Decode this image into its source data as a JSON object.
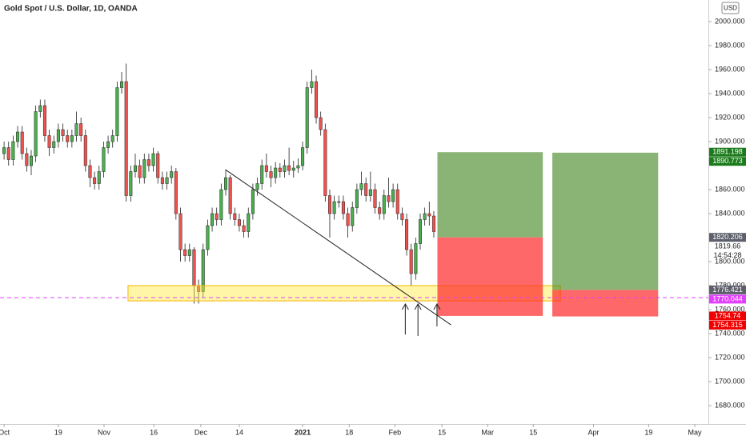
{
  "chart_data": {
    "type": "candlestick",
    "title": "Gold Spot / U.S. Dollar, 1D, OANDA",
    "currency": "USD",
    "open": [
      1890,
      1895,
      1885,
      1900,
      1908,
      1890,
      1880,
      1888,
      1925,
      1930,
      1905,
      1895,
      1900,
      1910,
      1905,
      1900,
      1905,
      1915,
      1905,
      1880,
      1870,
      1865,
      1875,
      1895,
      1900,
      1905,
      1945,
      1950,
      1855,
      1875,
      1880,
      1870,
      1885,
      1880,
      1890,
      1870,
      1865,
      1870,
      1875,
      1840,
      1810,
      1805,
      1810,
      1780,
      1775,
      1810,
      1830,
      1840,
      1835,
      1860,
      1870,
      1840,
      1835,
      1830,
      1825,
      1840,
      1860,
      1865,
      1880,
      1875,
      1870,
      1878,
      1875,
      1880,
      1876,
      1878,
      1880,
      1895,
      1945,
      1950,
      1920,
      1910,
      1855,
      1840,
      1850,
      1850,
      1840,
      1830,
      1845,
      1860,
      1865,
      1855,
      1860,
      1845,
      1840,
      1855,
      1850,
      1860,
      1840,
      1835,
      1810,
      1790,
      1815,
      1835,
      1840,
      1838
    ],
    "high": [
      1900,
      1900,
      1905,
      1913,
      1913,
      1895,
      1893,
      1930,
      1935,
      1935,
      1910,
      1905,
      1915,
      1915,
      1910,
      1910,
      1925,
      1920,
      1910,
      1885,
      1875,
      1880,
      1900,
      1905,
      1910,
      1950,
      1958,
      1965,
      1880,
      1890,
      1885,
      1890,
      1890,
      1895,
      1892,
      1875,
      1875,
      1880,
      1878,
      1845,
      1815,
      1815,
      1812,
      1785,
      1815,
      1835,
      1845,
      1845,
      1865,
      1876,
      1872,
      1845,
      1840,
      1835,
      1845,
      1865,
      1870,
      1885,
      1890,
      1880,
      1883,
      1882,
      1885,
      1895,
      1884,
      1886,
      1900,
      1950,
      1960,
      1955,
      1925,
      1915,
      1860,
      1855,
      1855,
      1855,
      1845,
      1850,
      1865,
      1875,
      1870,
      1875,
      1865,
      1850,
      1860,
      1870,
      1865,
      1865,
      1845,
      1840,
      1815,
      1820,
      1840,
      1845,
      1850,
      1842
    ],
    "low": [
      1885,
      1880,
      1880,
      1895,
      1885,
      1875,
      1872,
      1883,
      1920,
      1900,
      1888,
      1890,
      1895,
      1900,
      1895,
      1895,
      1900,
      1900,
      1875,
      1862,
      1860,
      1860,
      1870,
      1890,
      1895,
      1900,
      1940,
      1850,
      1850,
      1870,
      1865,
      1865,
      1875,
      1875,
      1865,
      1860,
      1860,
      1865,
      1835,
      1800,
      1800,
      1800,
      1765,
      1765,
      1770,
      1805,
      1825,
      1830,
      1830,
      1855,
      1835,
      1830,
      1825,
      1820,
      1820,
      1835,
      1855,
      1860,
      1870,
      1862,
      1865,
      1870,
      1870,
      1872,
      1870,
      1874,
      1876,
      1890,
      1940,
      1915,
      1905,
      1850,
      1820,
      1835,
      1845,
      1835,
      1820,
      1825,
      1840,
      1855,
      1850,
      1850,
      1840,
      1835,
      1835,
      1845,
      1845,
      1835,
      1830,
      1805,
      1780,
      1785,
      1810,
      1830,
      1830,
      1820
    ],
    "close": [
      1895,
      1885,
      1900,
      1908,
      1890,
      1880,
      1888,
      1925,
      1930,
      1905,
      1895,
      1900,
      1910,
      1905,
      1900,
      1905,
      1915,
      1905,
      1880,
      1870,
      1865,
      1875,
      1895,
      1900,
      1905,
      1945,
      1950,
      1855,
      1875,
      1880,
      1870,
      1885,
      1880,
      1890,
      1870,
      1865,
      1870,
      1875,
      1840,
      1810,
      1805,
      1810,
      1780,
      1775,
      1810,
      1830,
      1840,
      1835,
      1860,
      1870,
      1840,
      1835,
      1830,
      1825,
      1840,
      1860,
      1865,
      1880,
      1875,
      1870,
      1878,
      1875,
      1880,
      1876,
      1878,
      1880,
      1895,
      1945,
      1950,
      1920,
      1910,
      1855,
      1840,
      1850,
      1850,
      1840,
      1830,
      1845,
      1860,
      1865,
      1855,
      1860,
      1845,
      1840,
      1855,
      1850,
      1860,
      1840,
      1835,
      1810,
      1790,
      1815,
      1835,
      1840,
      1838,
      1825
    ],
    "up_color": "#4caf50",
    "down_color": "#ef5350",
    "xlim": [
      -0.9,
      155.7
    ],
    "xticks": [
      {
        "value": 0,
        "label": "Oct"
      },
      {
        "value": 12,
        "label": "19"
      },
      {
        "value": 22.1,
        "label": "Nov"
      },
      {
        "value": 33.1,
        "label": "16"
      },
      {
        "value": 43.5,
        "label": "Dec"
      },
      {
        "value": 52,
        "label": "14"
      },
      {
        "value": 66,
        "label": "2021"
      },
      {
        "value": 76.3,
        "label": "18"
      },
      {
        "value": 86.4,
        "label": "Feb"
      },
      {
        "value": 96.8,
        "label": "15"
      },
      {
        "value": 106.9,
        "label": "Mar"
      },
      {
        "value": 117,
        "label": "15"
      },
      {
        "value": 130.3,
        "label": "Apr"
      },
      {
        "value": 142.5,
        "label": "19"
      },
      {
        "value": 152.7,
        "label": "May"
      }
    ],
    "ylim": [
      1664.7,
      2018
    ],
    "yticks": [
      {
        "value": 2000,
        "label": "2000.000"
      },
      {
        "value": 1980,
        "label": "1980.000"
      },
      {
        "value": 1960,
        "label": "1960.000"
      },
      {
        "value": 1940,
        "label": "1940.000"
      },
      {
        "value": 1920,
        "label": "1920.000"
      },
      {
        "value": 1900,
        "label": "1900.000"
      },
      {
        "value": 1860,
        "label": "1860.000"
      },
      {
        "value": 1840,
        "label": "1840.000"
      },
      {
        "value": 1800,
        "label": "1800.000"
      },
      {
        "value": 1780,
        "label": "1780.000"
      },
      {
        "value": 1760,
        "label": "1760.000"
      },
      {
        "value": 1740,
        "label": "1740.000"
      },
      {
        "value": 1720,
        "label": "1720.000"
      },
      {
        "value": 1700,
        "label": "1700.000"
      },
      {
        "value": 1680,
        "label": "1680.000"
      }
    ],
    "grid": false,
    "position_tools": [
      {
        "target": 1891.198,
        "entry": 1820.206,
        "stop": 1754.74,
        "x_start": 95.8,
        "x_end": 119.1
      },
      {
        "target": 1890.773,
        "entry": 1776.421,
        "stop": 1754.315,
        "x_start": 121.2,
        "x_end": 144.6
      }
    ],
    "zone": {
      "low": 1767.3,
      "high": 1780,
      "x_start": 27.4,
      "x_end": 123
    },
    "horizontal_line": {
      "value": 1770.044,
      "color": "#e040fb"
    },
    "trend_line": {
      "x": [
        48.9,
        98.8
      ],
      "y": [
        1876.7,
        1747.3
      ]
    },
    "arrows": [
      {
        "x": 88.7,
        "from": 1739.3,
        "to": 1764.7
      },
      {
        "x": 91.5,
        "from": 1738,
        "to": 1764.7
      },
      {
        "x": 95.7,
        "from": 1746,
        "to": 1764.7
      }
    ],
    "price_tags": [
      {
        "value": 1891.198,
        "color": "#1b7a1b"
      },
      {
        "value": 1890.773,
        "color": "#1b7a1b"
      },
      {
        "value": 1820.206,
        "color": "#5d606b"
      },
      {
        "value": 1776.421,
        "color": "#5d606b"
      },
      {
        "value": 1770.044,
        "color": "#e040fb"
      },
      {
        "value": 1754.74,
        "color": "#f00000"
      },
      {
        "value": 1754.315,
        "color": "#f00000"
      }
    ],
    "last_price": 1819.66,
    "countdown": "14:54:28"
  }
}
